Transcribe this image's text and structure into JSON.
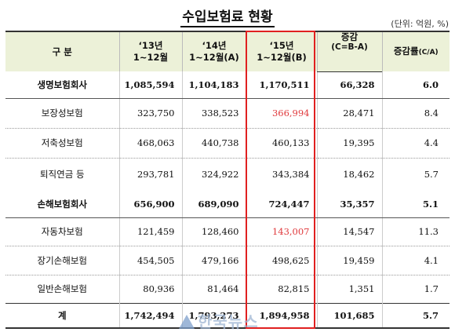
{
  "title": "수입보험료 현황",
  "unit": "(단위: 억원, %)",
  "headers": {
    "category": "구 분",
    "y13_line1": "‘13년",
    "y13_line2": "1~12월",
    "y14_line1": "‘14년",
    "y14_line2": "1~12월(A)",
    "y15_line1": "‘15년",
    "y15_line2": "1~12월(B)",
    "change_line1": "증감",
    "change_line2": "(C=B-A)",
    "rate": "증감률",
    "rate_suffix": "(C/A)"
  },
  "rows": [
    {
      "label": "생명보험회사",
      "y13": "1,085,594",
      "y14": "1,104,183",
      "y15": "1,170,511",
      "change": "66,328",
      "rate": "6.0"
    },
    {
      "label": "보장성보험",
      "y13": "323,750",
      "y14": "338,523",
      "y15": "366,994",
      "change": "28,471",
      "rate": "8.4"
    },
    {
      "label": "저축성보험",
      "y13": "468,063",
      "y14": "440,738",
      "y15": "460,133",
      "change": "19,395",
      "rate": "4.4"
    },
    {
      "label": "퇴직연금 등",
      "y13": "293,781",
      "y14": "324,922",
      "y15": "343,384",
      "change": "18,462",
      "rate": "5.7"
    },
    {
      "label": "손해보험회사",
      "y13": "656,900",
      "y14": "689,090",
      "y15": "724,447",
      "change": "35,357",
      "rate": "5.1"
    },
    {
      "label": "자동차보험",
      "y13": "121,459",
      "y14": "128,460",
      "y15": "143,007",
      "change": "14,547",
      "rate": "11.3"
    },
    {
      "label": "장기손해보험",
      "y13": "454,505",
      "y14": "479,166",
      "y15": "498,625",
      "change": "19,459",
      "rate": "4.1"
    },
    {
      "label": "일반손해보험",
      "y13": "80,936",
      "y14": "81,464",
      "y15": "82,815",
      "change": "1,351",
      "rate": "1.7"
    },
    {
      "label": "계",
      "y13": "1,742,494",
      "y14": "1,793,273",
      "y15": "1,894,958",
      "change": "101,685",
      "rate": "5.7"
    }
  ],
  "watermark": "한국뉴스",
  "colors": {
    "header_bg": "#ecf1d8",
    "highlight_border": "#e02020",
    "highlight_text": "#e0393c"
  }
}
